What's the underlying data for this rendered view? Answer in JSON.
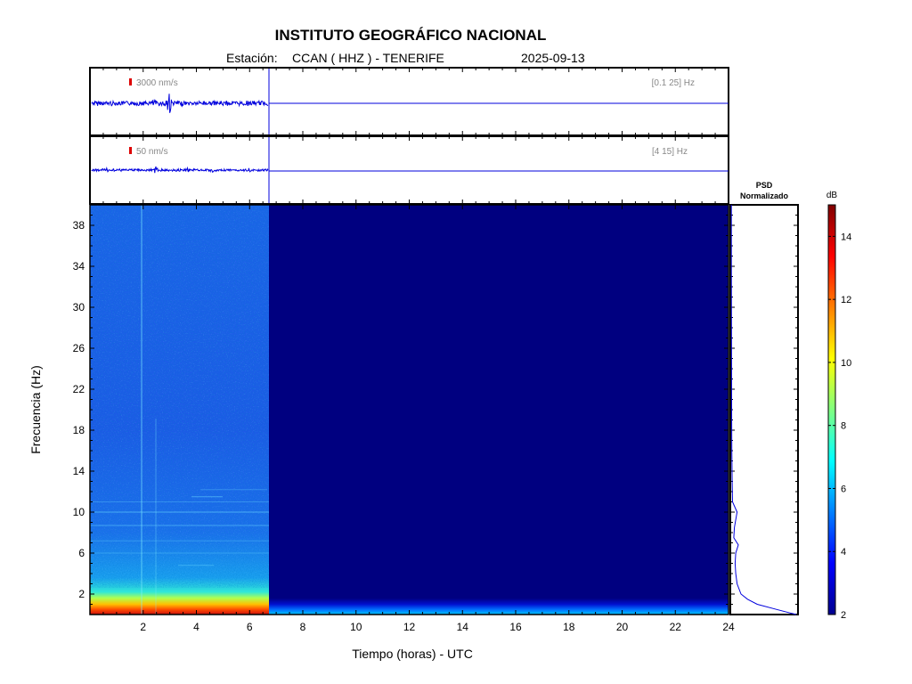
{
  "header": {
    "title": "INSTITUTO GEOGRÁFICO NACIONAL",
    "station_label": "Estación:",
    "station": "CCAN ( HHZ ) - TENERIFE",
    "date": "2025-09-13"
  },
  "traces": [
    {
      "scale_label": "3000 nm/s",
      "band_label": "[0.1 25] Hz"
    },
    {
      "scale_label": "50 nm/s",
      "band_label": "[4 15] Hz"
    }
  ],
  "psd_panel": {
    "title_line1": "PSD",
    "title_line2": "Normalizado"
  },
  "colorbar": {
    "unit": "dB",
    "min": 2,
    "max": 15,
    "ticks": [
      2,
      4,
      6,
      8,
      10,
      12,
      14
    ]
  },
  "colors": {
    "trace": "#0000dd",
    "scale_marker": "#dd0000",
    "background_fill": "#000080"
  },
  "chart_data": {
    "type": "heatmap",
    "xlabel": "Tiempo (horas) - UTC",
    "ylabel": "Frecuencia  (Hz)",
    "xlim": [
      0,
      24
    ],
    "ylim": [
      0,
      40
    ],
    "x_ticks": [
      2,
      4,
      6,
      8,
      10,
      12,
      14,
      16,
      18,
      20,
      22,
      24
    ],
    "y_ticks": [
      2,
      6,
      10,
      14,
      18,
      22,
      26,
      30,
      34,
      38
    ],
    "data_end_hour": 6.7,
    "psd_profile": [
      {
        "f": 0.0,
        "v": 1.0
      },
      {
        "f": 0.5,
        "v": 0.7
      },
      {
        "f": 1.0,
        "v": 0.4
      },
      {
        "f": 1.5,
        "v": 0.25
      },
      {
        "f": 2.0,
        "v": 0.15
      },
      {
        "f": 3.0,
        "v": 0.09
      },
      {
        "f": 4.0,
        "v": 0.07
      },
      {
        "f": 5.0,
        "v": 0.06
      },
      {
        "f": 6.0,
        "v": 0.07
      },
      {
        "f": 6.8,
        "v": 0.11
      },
      {
        "f": 7.5,
        "v": 0.04
      },
      {
        "f": 8.5,
        "v": 0.05
      },
      {
        "f": 10.0,
        "v": 0.09
      },
      {
        "f": 11.0,
        "v": 0.02
      },
      {
        "f": 13.0,
        "v": 0.015
      },
      {
        "f": 16.0,
        "v": 0.01
      },
      {
        "f": 20.0,
        "v": 0.007
      },
      {
        "f": 25.0,
        "v": 0.005
      },
      {
        "f": 30.0,
        "v": 0.004
      },
      {
        "f": 35.0,
        "v": 0.003
      },
      {
        "f": 40.0,
        "v": 0.003
      }
    ]
  }
}
